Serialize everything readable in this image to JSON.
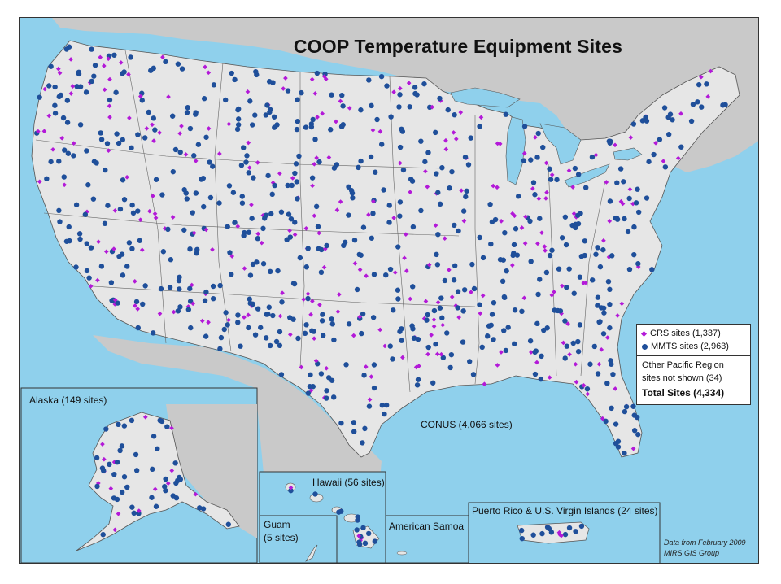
{
  "map": {
    "title": "COOP Temperature Equipment Sites",
    "conus_label": "CONUS (4,066 sites)",
    "colors": {
      "water": "#8fd0ec",
      "land_us": "#e6e6e6",
      "land_other": "#c9c9c9",
      "crs_symbol": "#b319d8",
      "mmts_symbol": "#1f4f9a"
    }
  },
  "legend": {
    "crs": "CRS sites (1,337)",
    "mmts": "MMTS sites (2,963)",
    "other_line1": "Other Pacific Region",
    "other_line2": "sites not shown (34)",
    "total": "Total Sites (4,334)"
  },
  "insets": {
    "alaska": "Alaska (149 sites)",
    "hawaii": "Hawaii (56 sites)",
    "guam_line1": "Guam",
    "guam_line2": "(5 sites)",
    "samoa": "American Samoa",
    "puerto_rico": "Puerto Rico & U.S. Virgin Islands (24 sites)"
  },
  "credits": {
    "line1": "Data from February 2009",
    "line2": "MIRS GIS Group"
  }
}
